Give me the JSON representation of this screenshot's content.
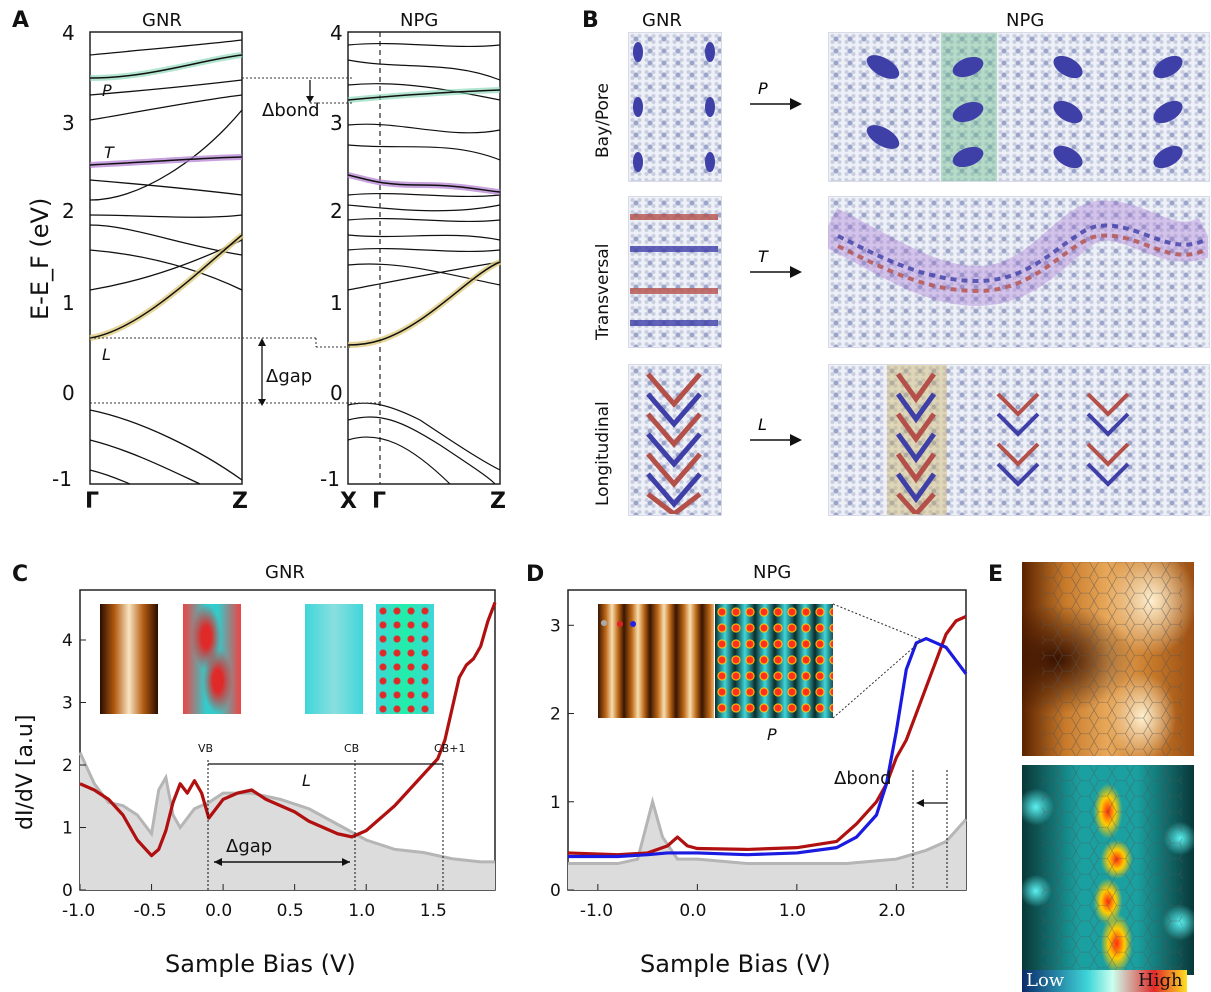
{
  "panelA": {
    "label": "A",
    "gnr_title": "GNR",
    "npg_title": "NPG",
    "ylabel": "E-E_F (eV)",
    "yticks": [
      "4",
      "3",
      "2",
      "1",
      "0",
      "-1"
    ],
    "gnr_kpoints": [
      "Γ",
      "Z"
    ],
    "npg_kpoints": [
      "X",
      "Γ",
      "Z"
    ],
    "band_labels": [
      "P",
      "T",
      "L"
    ],
    "delta_bond": "Δbond",
    "delta_gap": "Δgap"
  },
  "panelB": {
    "label": "B",
    "gnr_title": "GNR",
    "npg_title": "NPG",
    "rows": [
      {
        "name": "Bay/Pore",
        "arrow": "P",
        "highlight": "#6fbf8f"
      },
      {
        "name": "Transversal",
        "arrow": "T",
        "highlight": "#a070d0"
      },
      {
        "name": "Longitudinal",
        "arrow": "L",
        "highlight": "#cdb56a"
      }
    ]
  },
  "panelC": {
    "label": "C",
    "title": "GNR",
    "xlabel": "Sample Bias (V)",
    "ylabel": "dI/dV [a.u]",
    "xticks": [
      "-1.0",
      "-0.5",
      "0.0",
      "0.5",
      "1.0",
      "1.5"
    ],
    "yticks": [
      "0",
      "1",
      "2",
      "3",
      "4"
    ],
    "markers": [
      "VB",
      "CB",
      "CB+1"
    ],
    "L_label": "L",
    "delta_gap": "Δgap"
  },
  "panelD": {
    "label": "D",
    "title": "NPG",
    "xlabel": "Sample Bias (V)",
    "yticks": [
      "0",
      "1",
      "2",
      "3"
    ],
    "xticks": [
      "-1.0",
      "0.0",
      "1.0",
      "2.0"
    ],
    "inset_label": "P",
    "delta_bond": "Δbond"
  },
  "panelE": {
    "label": "E",
    "colorbar_low": "Low",
    "colorbar_high": "High"
  },
  "colors": {
    "red_curve": "#b01010",
    "blue_curve": "#1a1ae0",
    "gray_fill": "#d9d9d9",
    "teal": "#4fd3d6",
    "stm_orange": "#c8772a"
  },
  "chart_data": [
    {
      "type": "line",
      "title": "GNR",
      "xlabel": "Sample Bias (V)",
      "ylabel": "dI/dV [a.u]",
      "xlim": [
        -1.0,
        1.9
      ],
      "ylim": [
        0,
        4.8
      ],
      "series": [
        {
          "name": "",
          "color": "#b01010",
          "x": [
            -1.0,
            -0.9,
            -0.8,
            -0.7,
            -0.6,
            -0.5,
            -0.45,
            -0.4,
            -0.35,
            -0.3,
            -0.25,
            -0.2,
            -0.15,
            -0.1,
            -0.05,
            0.0,
            0.1,
            0.2,
            0.3,
            0.4,
            0.5,
            0.6,
            0.7,
            0.8,
            0.9,
            1.0,
            1.1,
            1.2,
            1.3,
            1.4,
            1.5,
            1.55,
            1.6,
            1.65,
            1.7,
            1.75,
            1.8,
            1.85,
            1.9
          ],
          "y": [
            1.7,
            1.6,
            1.45,
            1.2,
            0.8,
            0.55,
            0.65,
            0.95,
            1.4,
            1.7,
            1.55,
            1.75,
            1.55,
            1.15,
            1.3,
            1.45,
            1.55,
            1.6,
            1.45,
            1.35,
            1.25,
            1.1,
            1.0,
            0.9,
            0.85,
            0.95,
            1.15,
            1.35,
            1.6,
            1.85,
            2.1,
            2.4,
            2.9,
            3.4,
            3.6,
            3.7,
            3.9,
            4.3,
            4.6
          ]
        },
        {
          "name": "",
          "color": "#aaaaaa",
          "x": [
            -1.0,
            -0.9,
            -0.8,
            -0.7,
            -0.6,
            -0.5,
            -0.45,
            -0.4,
            -0.35,
            -0.3,
            -0.2,
            -0.1,
            0.0,
            0.2,
            0.4,
            0.6,
            0.8,
            1.0,
            1.2,
            1.4,
            1.6,
            1.8,
            1.9
          ],
          "y": [
            2.2,
            1.7,
            1.4,
            1.35,
            1.2,
            0.9,
            1.6,
            1.8,
            1.2,
            1.0,
            1.3,
            1.4,
            1.55,
            1.55,
            1.45,
            1.3,
            1.05,
            0.8,
            0.65,
            0.6,
            0.5,
            0.45,
            0.45
          ]
        }
      ]
    },
    {
      "type": "line",
      "title": "NPG",
      "xlabel": "Sample Bias (V)",
      "xlim": [
        -1.3,
        2.7
      ],
      "ylim": [
        0,
        3.4
      ],
      "series": [
        {
          "name": "",
          "color": "#b01010",
          "x": [
            -1.3,
            -0.8,
            -0.5,
            -0.3,
            -0.2,
            -0.1,
            0.0,
            0.5,
            1.0,
            1.4,
            1.6,
            1.8,
            1.9,
            2.0,
            2.1,
            2.2,
            2.3,
            2.4,
            2.5,
            2.6,
            2.7
          ],
          "y": [
            0.42,
            0.4,
            0.42,
            0.5,
            0.6,
            0.5,
            0.47,
            0.46,
            0.48,
            0.55,
            0.75,
            1.0,
            1.2,
            1.5,
            1.7,
            2.0,
            2.3,
            2.6,
            2.9,
            3.05,
            3.1
          ]
        },
        {
          "name": "",
          "color": "#1a1ae0",
          "x": [
            -1.3,
            -0.8,
            -0.5,
            -0.3,
            0.0,
            0.5,
            1.0,
            1.4,
            1.6,
            1.8,
            1.9,
            2.0,
            2.1,
            2.2,
            2.3,
            2.4,
            2.5,
            2.6,
            2.7
          ],
          "y": [
            0.38,
            0.38,
            0.4,
            0.42,
            0.42,
            0.4,
            0.42,
            0.48,
            0.6,
            0.85,
            1.2,
            1.8,
            2.5,
            2.8,
            2.85,
            2.8,
            2.75,
            2.6,
            2.45
          ]
        },
        {
          "name": "",
          "color": "#aaaaaa",
          "x": [
            -1.3,
            -0.8,
            -0.6,
            -0.45,
            -0.35,
            -0.2,
            0.0,
            0.5,
            1.0,
            1.5,
            2.0,
            2.3,
            2.5,
            2.7
          ],
          "y": [
            0.3,
            0.3,
            0.35,
            1.0,
            0.6,
            0.35,
            0.35,
            0.3,
            0.3,
            0.3,
            0.35,
            0.45,
            0.55,
            0.8
          ]
        }
      ]
    }
  ]
}
